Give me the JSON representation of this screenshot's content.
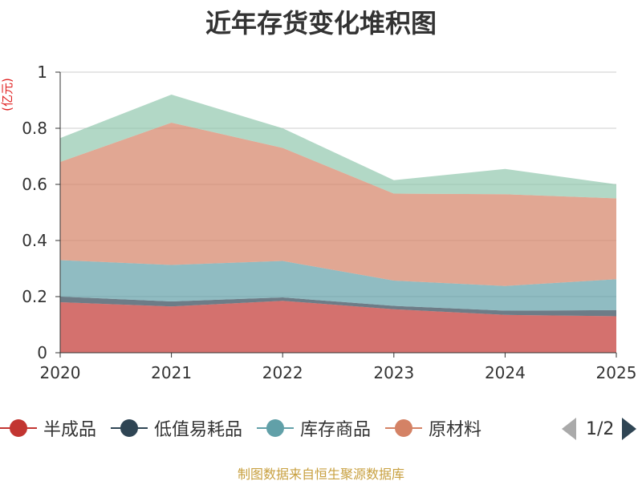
{
  "chart_data": {
    "type": "area",
    "stacked": true,
    "title": "近年存货变化堆积图",
    "ylabel": "(亿元)",
    "xlabel": "",
    "ylim": [
      0,
      1
    ],
    "yticks": [
      "0",
      "0.2",
      "0.4",
      "0.6",
      "0.8",
      "1"
    ],
    "x": [
      "2020",
      "2021",
      "2022",
      "2023",
      "2024",
      "2025"
    ],
    "grid": true,
    "legend_position": "bottom",
    "series": [
      {
        "name": "半成品",
        "color": "#c23531",
        "values": [
          0.18,
          0.165,
          0.185,
          0.155,
          0.135,
          0.13
        ]
      },
      {
        "name": "低值易耗品",
        "color": "#2f4554",
        "values": [
          0.02,
          0.018,
          0.012,
          0.012,
          0.015,
          0.022
        ]
      },
      {
        "name": "库存商品",
        "color": "#61a0a8",
        "values": [
          0.13,
          0.13,
          0.13,
          0.09,
          0.088,
          0.11
        ]
      },
      {
        "name": "原材料",
        "color": "#d48265",
        "values": [
          0.35,
          0.507,
          0.403,
          0.31,
          0.327,
          0.288
        ]
      },
      {
        "name": "",
        "color": "#91c7ae",
        "values": [
          0.085,
          0.1,
          0.07,
          0.048,
          0.09,
          0.05
        ]
      }
    ]
  },
  "legend": {
    "pager_text": "1/2"
  },
  "source_text": "制图数据来自恒生聚源数据库"
}
